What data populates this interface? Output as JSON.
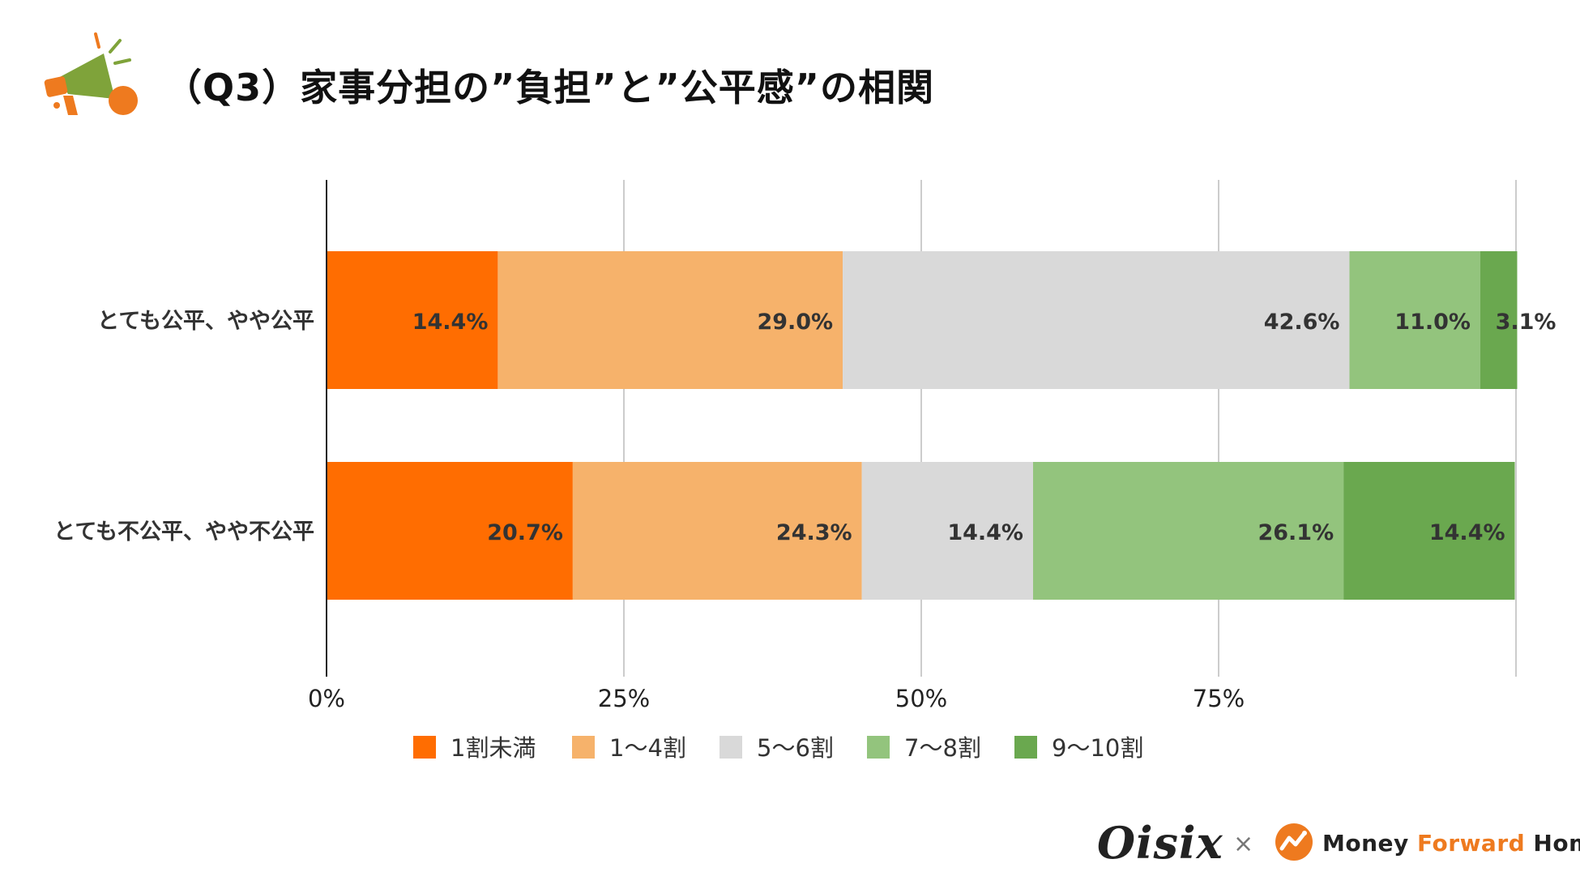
{
  "header": {
    "title": "（Q3）家事分担の”負担”と”公平感”の相関",
    "icon": "megaphone-icon"
  },
  "colors": {
    "segments": [
      "#ff6d01",
      "#f6b26b",
      "#d9d9d9",
      "#93c47d",
      "#6aa84f"
    ],
    "axis": "#222222",
    "grid": "#cccccc",
    "brand_orange": "#ee7a1f"
  },
  "chart_data": {
    "type": "bar",
    "orientation": "horizontal",
    "stacked": true,
    "categories": [
      "とても公平、やや公平",
      "とても不公平、やや不公平"
    ],
    "series": [
      {
        "name": "1割未満",
        "values": [
          14.4,
          20.7
        ]
      },
      {
        "name": "1〜4割",
        "values": [
          29.0,
          24.3
        ]
      },
      {
        "name": "5〜6割",
        "values": [
          42.6,
          14.4
        ]
      },
      {
        "name": "7〜8割",
        "values": [
          11.0,
          26.1
        ]
      },
      {
        "name": "9〜10割",
        "values": [
          3.1,
          14.4
        ]
      }
    ],
    "data_labels": [
      [
        "14.4%",
        "29.0%",
        "42.6%",
        "11.0%",
        "3.1%"
      ],
      [
        "20.7%",
        "24.3%",
        "14.4%",
        "26.1%",
        "14.4%"
      ]
    ],
    "xticks": [
      "0%",
      "25%",
      "50%",
      "75%"
    ],
    "xlim": [
      0,
      100
    ],
    "grid": true,
    "legend_position": "bottom"
  },
  "footer": {
    "logo_left": "Oisix",
    "separator": "×",
    "logo_right_parts": [
      "Money ",
      "Forward",
      " Home"
    ]
  }
}
